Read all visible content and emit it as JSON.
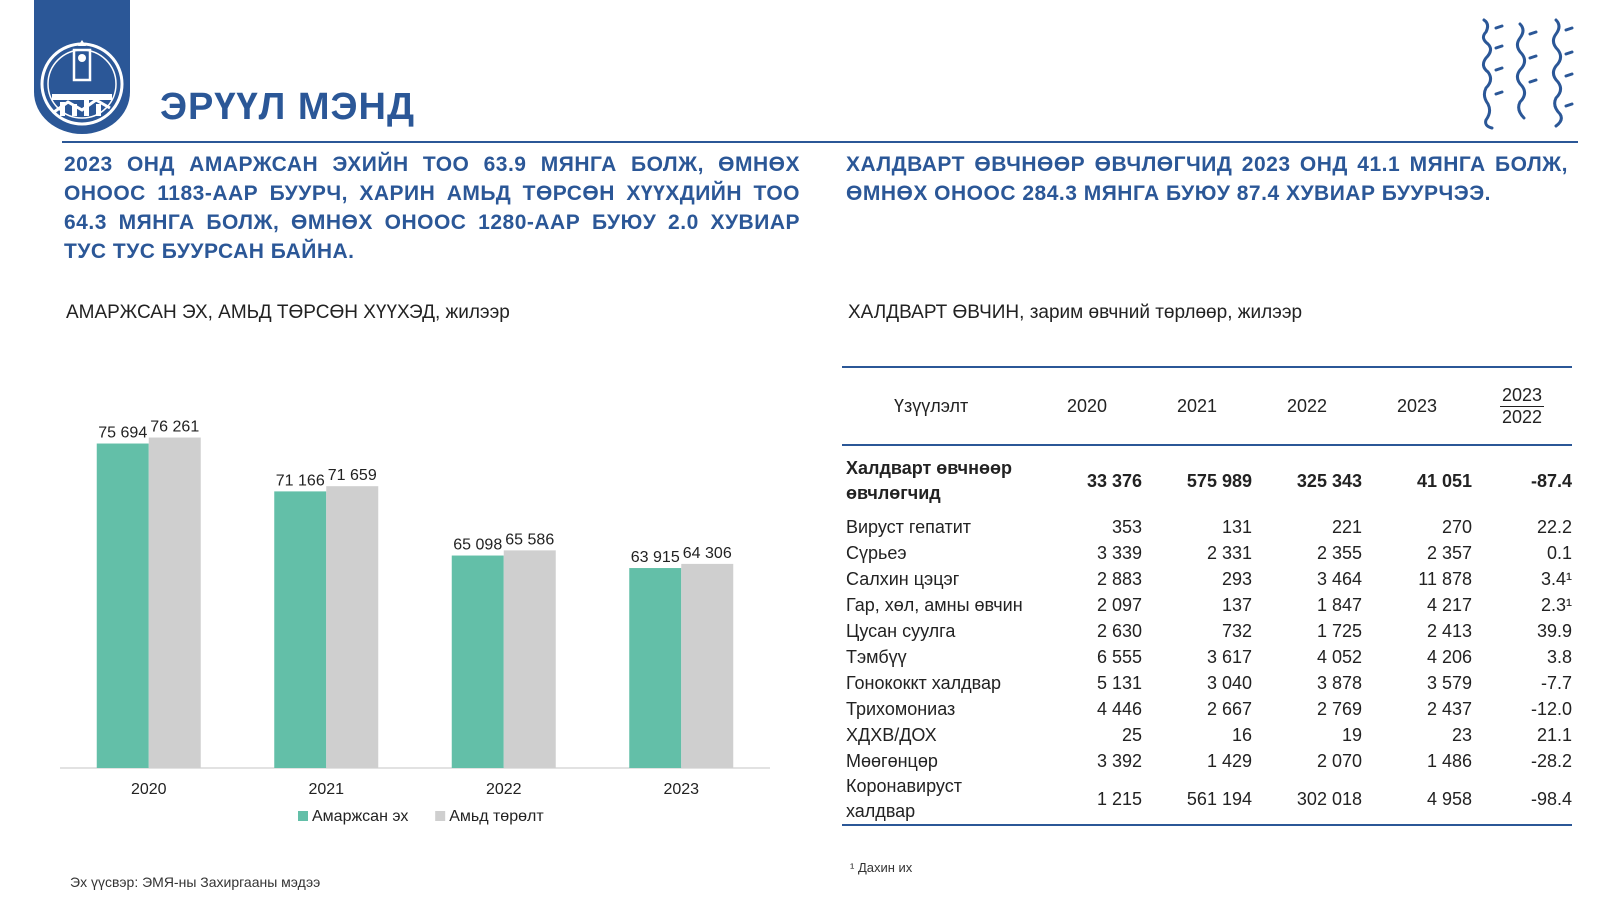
{
  "header": {
    "title": "ЭРҮҮЛ МЭНД"
  },
  "headlines": {
    "left": "2023 онд амаржсан эхийн тоо 63.9 мянга болж, өмнөх оноос 1183-аар буурч, харин амьд төрсөн хүүхдийн тоо 64.3 мянга болж, өмнөх оноос 1280-аар буюу 2.0 хувиар тус тус буурсан байна.",
    "right": "Халдварт өвчнөөр өвчлөгчид 2023 онд 41.1 мянга болж, өмнөх оноос 284.3 мянга буюу 87.4 хувиар буурчээ."
  },
  "left_panel": {
    "title": "АМАРЖСАН ЭХ, АМЬД ТӨРСӨН ХҮҮХЭД, жилээр",
    "source": "Эх үүсвэр: ЭМЯ-ны Захиргааны мэдээ"
  },
  "right_panel": {
    "title": "ХАЛДВАРТ ӨВЧИН, зарим өвчний төрлөөр, жилээр",
    "footnote": "¹ Дахин их",
    "table": {
      "label_header": "Үзүүлэлт",
      "years": [
        "2020",
        "2021",
        "2022",
        "2023"
      ],
      "ratio_top": "2023",
      "ratio_bottom": "2022",
      "rows": [
        {
          "label": "Халдварт өвчнөөр өвчлөгчид",
          "v": [
            "33 376",
            "575 989",
            "325 343",
            "41 051"
          ],
          "ratio": "-87.4",
          "total": true
        },
        {
          "label": "Вируст гепатит",
          "v": [
            "353",
            "131",
            "221",
            "270"
          ],
          "ratio": "22.2"
        },
        {
          "label": "Сүрьеэ",
          "v": [
            "3 339",
            "2 331",
            "2 355",
            "2 357"
          ],
          "ratio": "0.1"
        },
        {
          "label": "Салхин цэцэг",
          "v": [
            "2 883",
            "293",
            "3 464",
            "11 878"
          ],
          "ratio": "3.4¹"
        },
        {
          "label": "Гар, хөл, амны өвчин",
          "v": [
            "2 097",
            "137",
            "1 847",
            "4 217"
          ],
          "ratio": "2.3¹"
        },
        {
          "label": "Цусан суулга",
          "v": [
            "2 630",
            "732",
            "1 725",
            "2 413"
          ],
          "ratio": "39.9"
        },
        {
          "label": "Тэмбүү",
          "v": [
            "6 555",
            "3 617",
            "4 052",
            "4 206"
          ],
          "ratio": "3.8"
        },
        {
          "label": "Гонококкт халдвар",
          "v": [
            "5 131",
            "3 040",
            "3 878",
            "3 579"
          ],
          "ratio": "-7.7"
        },
        {
          "label": "Трихомониаз",
          "v": [
            "4 446",
            "2 667",
            "2 769",
            "2 437"
          ],
          "ratio": "-12.0"
        },
        {
          "label": "ХДХВ/ДОХ",
          "v": [
            "25",
            "16",
            "19",
            "23"
          ],
          "ratio": "21.1"
        },
        {
          "label": "Мөөгөнцөр",
          "v": [
            "3 392",
            "1 429",
            "2 070",
            "1 486"
          ],
          "ratio": "-28.2"
        },
        {
          "label": "Коронавируст халдвар",
          "v": [
            "1 215",
            "561 194",
            "302 018",
            "4 958"
          ],
          "ratio": "-98.4"
        }
      ]
    }
  },
  "colors": {
    "brand": "#2b5797",
    "series_mothers": "#63bfa8",
    "series_births": "#cfcfcf"
  },
  "chart_data": {
    "type": "bar",
    "title": "АМАРЖСАН ЭХ, АМЬД ТӨРСӨН ХҮҮХЭД, жилээр",
    "categories": [
      "2020",
      "2021",
      "2022",
      "2023"
    ],
    "series": [
      {
        "name": "Амаржсан эх",
        "values": [
          75694,
          71166,
          65098,
          63915
        ],
        "labels": [
          "75 694",
          "71 166",
          "65 098",
          "63 915"
        ],
        "color": "#63bfa8"
      },
      {
        "name": "Амьд төрөлт",
        "values": [
          76261,
          71659,
          65586,
          64306
        ],
        "labels": [
          "76 261",
          "71 659",
          "65 586",
          "64 306"
        ],
        "color": "#cfcfcf"
      }
    ],
    "ylim": [
      45000,
      80000
    ],
    "grid": false,
    "legend": "bottom"
  }
}
